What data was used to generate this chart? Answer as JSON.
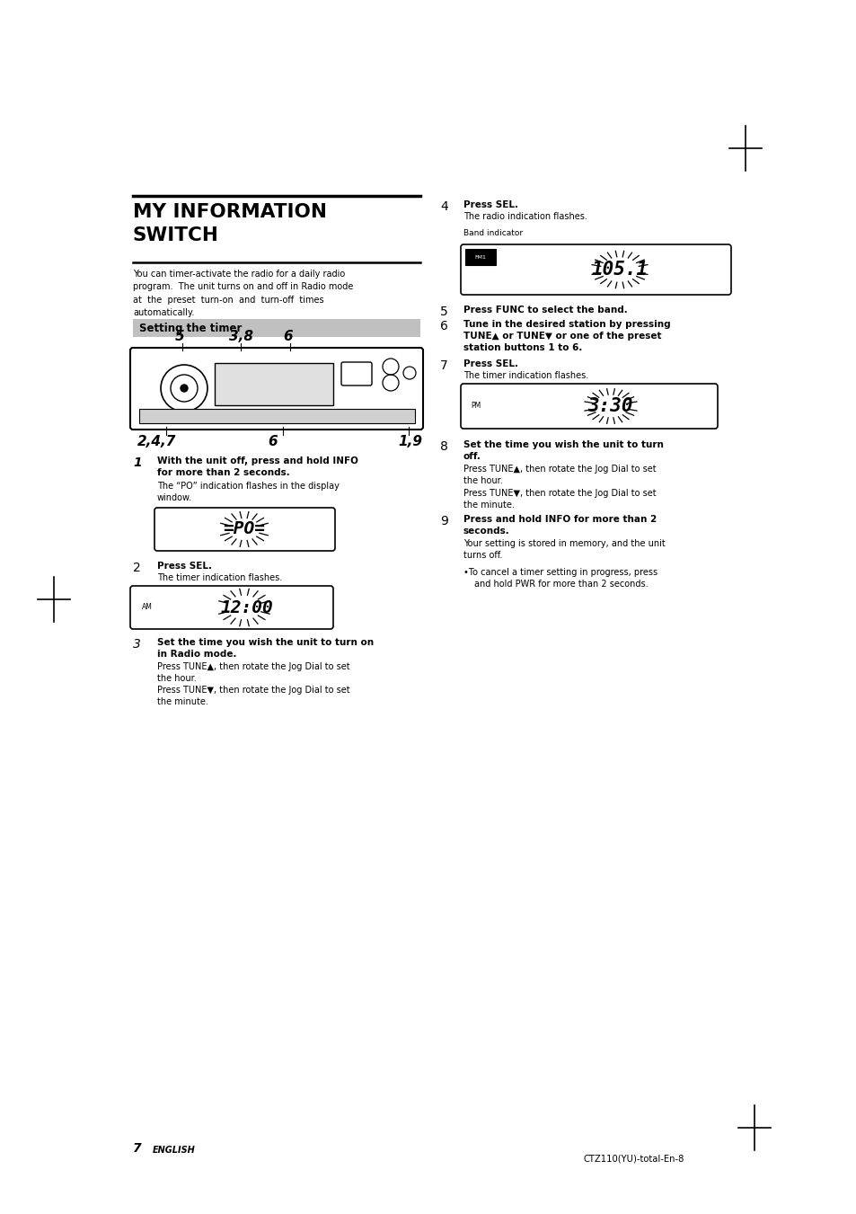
{
  "bg_color": "#ffffff",
  "page_width": 9.54,
  "page_height": 13.51,
  "footer_page": "7",
  "footer_english": "ENGLISH",
  "footer_code": "CTZ110(YU)-total-En-8"
}
